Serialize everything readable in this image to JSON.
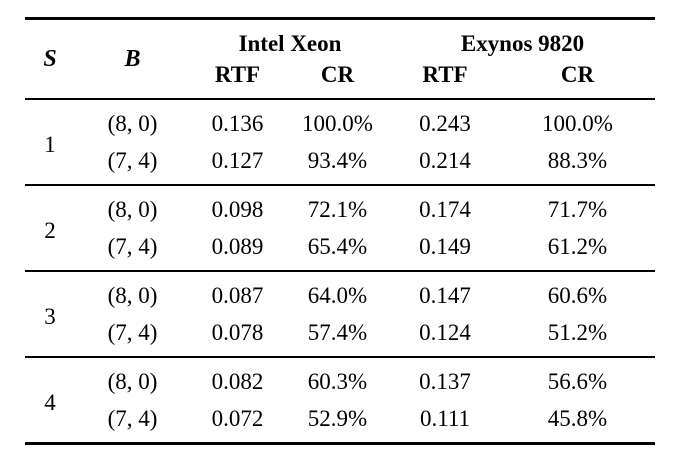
{
  "colors": {
    "text": "#000000",
    "rule": "#000000",
    "background": "#ffffff"
  },
  "header": {
    "s": "S",
    "b": "B",
    "groups": [
      {
        "label": "Intel Xeon"
      },
      {
        "label": "Exynos 9820"
      }
    ],
    "sub": [
      "RTF",
      "CR",
      "RTF",
      "CR"
    ]
  },
  "groups": [
    {
      "s": "1",
      "rows": [
        {
          "b": "(8, 0)",
          "intel_rtf": "0.136",
          "intel_cr": "100.0%",
          "exynos_rtf": "0.243",
          "exynos_cr": "100.0%"
        },
        {
          "b": "(7, 4)",
          "intel_rtf": "0.127",
          "intel_cr": "93.4%",
          "exynos_rtf": "0.214",
          "exynos_cr": "88.3%"
        }
      ]
    },
    {
      "s": "2",
      "rows": [
        {
          "b": "(8, 0)",
          "intel_rtf": "0.098",
          "intel_cr": "72.1%",
          "exynos_rtf": "0.174",
          "exynos_cr": "71.7%"
        },
        {
          "b": "(7, 4)",
          "intel_rtf": "0.089",
          "intel_cr": "65.4%",
          "exynos_rtf": "0.149",
          "exynos_cr": "61.2%"
        }
      ]
    },
    {
      "s": "3",
      "rows": [
        {
          "b": "(8, 0)",
          "intel_rtf": "0.087",
          "intel_cr": "64.0%",
          "exynos_rtf": "0.147",
          "exynos_cr": "60.6%"
        },
        {
          "b": "(7, 4)",
          "intel_rtf": "0.078",
          "intel_cr": "57.4%",
          "exynos_rtf": "0.124",
          "exynos_cr": "51.2%"
        }
      ]
    },
    {
      "s": "4",
      "rows": [
        {
          "b": "(8, 0)",
          "intel_rtf": "0.082",
          "intel_cr": "60.3%",
          "exynos_rtf": "0.137",
          "exynos_cr": "56.6%"
        },
        {
          "b": "(7, 4)",
          "intel_rtf": "0.072",
          "intel_cr": "52.9%",
          "exynos_rtf": "0.111",
          "exynos_cr": "45.8%"
        }
      ]
    }
  ]
}
